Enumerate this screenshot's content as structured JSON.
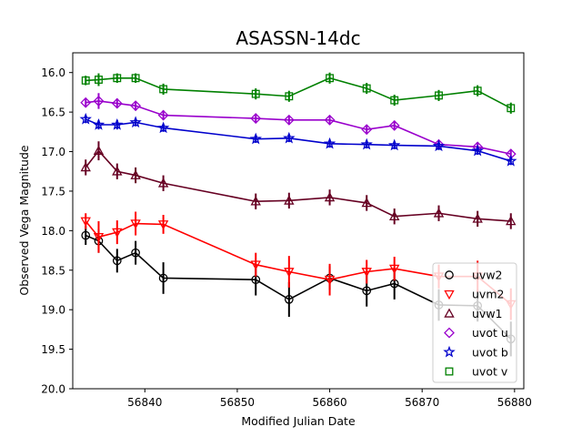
{
  "chart_data": {
    "type": "line",
    "title": "ASASSN-14dc",
    "xlabel": "Modified Julian Date",
    "ylabel": "Observed Vega Magnitude",
    "xlim": [
      56832.2,
      56881.0
    ],
    "ylim": [
      20.0,
      15.75
    ],
    "y_inverted": true,
    "xticks": [
      56840,
      56850,
      56860,
      56870,
      56880
    ],
    "yticks": [
      16.0,
      16.5,
      17.0,
      17.5,
      18.0,
      18.5,
      19.0,
      19.5,
      20.0
    ],
    "xtick_labels": [
      "56840",
      "56850",
      "56860",
      "56870",
      "56880"
    ],
    "ytick_labels": [
      "16.0",
      "16.5",
      "17.0",
      "17.5",
      "18.0",
      "18.5",
      "19.0",
      "19.5",
      "20.0"
    ],
    "grid": false,
    "legend_position": "lower right",
    "series": [
      {
        "name": "uvw2",
        "color": "#000000",
        "marker": "circle",
        "x": [
          56833.6,
          56835.0,
          56837.0,
          56839.0,
          56842.0,
          56852.0,
          56855.6,
          56860.0,
          56864.0,
          56867.0,
          56871.8,
          56876.0,
          56879.6
        ],
        "y": [
          18.06,
          18.13,
          18.38,
          18.28,
          18.6,
          18.62,
          18.87,
          18.6,
          18.76,
          18.67,
          18.94,
          18.95,
          19.37
        ],
        "err": [
          0.12,
          0.15,
          0.15,
          0.15,
          0.2,
          0.2,
          0.22,
          0.15,
          0.2,
          0.2,
          0.2,
          0.2,
          0.22
        ]
      },
      {
        "name": "uvm2",
        "color": "#ff0000",
        "marker": "triangle-down",
        "x": [
          56833.6,
          56835.0,
          56837.0,
          56839.0,
          56842.0,
          56852.0,
          56855.6,
          56860.0,
          56864.0,
          56867.0,
          56871.8,
          56876.0,
          56879.6
        ],
        "y": [
          17.88,
          18.08,
          18.02,
          17.91,
          17.92,
          18.43,
          18.52,
          18.62,
          18.52,
          18.48,
          18.58,
          18.58,
          18.93
        ],
        "err": [
          0.1,
          0.2,
          0.15,
          0.15,
          0.12,
          0.15,
          0.2,
          0.2,
          0.15,
          0.15,
          0.15,
          0.2,
          0.2
        ]
      },
      {
        "name": "uvw1",
        "color": "#660022",
        "marker": "triangle-up",
        "x": [
          56833.6,
          56835.0,
          56837.0,
          56839.0,
          56842.0,
          56852.0,
          56855.6,
          56860.0,
          56864.0,
          56867.0,
          56871.8,
          56876.0,
          56879.6
        ],
        "y": [
          17.2,
          16.99,
          17.25,
          17.3,
          17.4,
          17.63,
          17.62,
          17.58,
          17.65,
          17.82,
          17.78,
          17.85,
          17.88
        ],
        "err": [
          0.1,
          0.12,
          0.1,
          0.1,
          0.1,
          0.1,
          0.1,
          0.1,
          0.1,
          0.1,
          0.1,
          0.1,
          0.1
        ]
      },
      {
        "name": "uvot u",
        "color": "#9900cc",
        "marker": "diamond",
        "x": [
          56833.6,
          56835.0,
          56837.0,
          56839.0,
          56842.0,
          56852.0,
          56855.6,
          56860.0,
          56864.0,
          56867.0,
          56871.8,
          56876.0,
          56879.6
        ],
        "y": [
          16.38,
          16.36,
          16.39,
          16.42,
          16.54,
          16.58,
          16.6,
          16.6,
          16.72,
          16.67,
          16.91,
          16.94,
          17.03
        ],
        "err": [
          0.05,
          0.1,
          0.06,
          0.06,
          0.06,
          0.06,
          0.06,
          0.06,
          0.06,
          0.06,
          0.06,
          0.06,
          0.06
        ]
      },
      {
        "name": "uvot b",
        "color": "#0000cc",
        "marker": "star",
        "x": [
          56833.6,
          56835.0,
          56837.0,
          56839.0,
          56842.0,
          56852.0,
          56855.6,
          56860.0,
          56864.0,
          56867.0,
          56871.8,
          56876.0,
          56879.6
        ],
        "y": [
          16.59,
          16.66,
          16.66,
          16.63,
          16.7,
          16.84,
          16.83,
          16.9,
          16.91,
          16.92,
          16.93,
          16.99,
          17.12
        ],
        "err": [
          0.05,
          0.06,
          0.06,
          0.05,
          0.05,
          0.05,
          0.05,
          0.05,
          0.05,
          0.05,
          0.05,
          0.05,
          0.05
        ]
      },
      {
        "name": "uvot v",
        "color": "#008000",
        "marker": "square",
        "x": [
          56833.6,
          56835.0,
          56837.0,
          56839.0,
          56842.0,
          56852.0,
          56855.6,
          56860.0,
          56864.0,
          56867.0,
          56871.8,
          56876.0,
          56879.6
        ],
        "y": [
          16.1,
          16.09,
          16.07,
          16.07,
          16.21,
          16.27,
          16.3,
          16.07,
          16.2,
          16.35,
          16.29,
          16.23,
          16.45
        ],
        "err": [
          0.06,
          0.08,
          0.06,
          0.06,
          0.07,
          0.07,
          0.07,
          0.07,
          0.07,
          0.07,
          0.07,
          0.07,
          0.07
        ]
      }
    ]
  }
}
